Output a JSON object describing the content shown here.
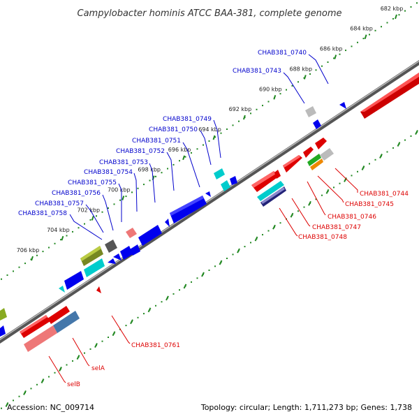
{
  "title": "Campylobacter hominis ATCC BAA-381, complete genome",
  "footer": {
    "accession": "Accession: NC_009714",
    "details": "Topology: circular; Length: 1,711,273 bp; Genes: 1,738"
  },
  "colors": {
    "forward_label": "#0000cc",
    "reverse_label": "#dd0000",
    "backbone": "#888888",
    "ticks": "#228822"
  },
  "kbp_ticks": [
    {
      "label": "682 kbp",
      "kbp": 682
    },
    {
      "label": "684 kbp",
      "kbp": 684
    },
    {
      "label": "686 kbp",
      "kbp": 686
    },
    {
      "label": "688 kbp",
      "kbp": 688
    },
    {
      "label": "690 kbp",
      "kbp": 690
    },
    {
      "label": "692 kbp",
      "kbp": 692
    },
    {
      "label": "694 kbp",
      "kbp": 694
    },
    {
      "label": "696 kbp",
      "kbp": 696
    },
    {
      "label": "698 kbp",
      "kbp": 698
    },
    {
      "label": "700 kbp",
      "kbp": 700
    },
    {
      "label": "702 kbp",
      "kbp": 702
    },
    {
      "label": "704 kbp",
      "kbp": 704
    },
    {
      "label": "706 kbp",
      "kbp": 706
    }
  ],
  "forward_labels": [
    "CHAB381_0740",
    "CHAB381_0743",
    "CHAB381_0749",
    "CHAB381_0750",
    "CHAB381_0751",
    "CHAB381_0752",
    "CHAB381_0753",
    "CHAB381_0754",
    "CHAB381_0755",
    "CHAB381_0756",
    "CHAB381_0757",
    "CHAB381_0758"
  ],
  "reverse_labels": [
    "CHAB381_0744",
    "CHAB381_0745",
    "CHAB381_0746",
    "CHAB381_0747",
    "CHAB381_0748",
    "CHAB381_0761",
    "selA",
    "selB"
  ]
}
